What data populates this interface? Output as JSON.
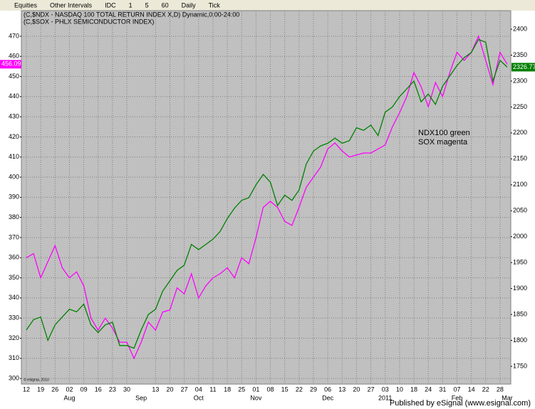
{
  "toolbar": {
    "items": [
      "Equities",
      "Other Intervals",
      "IDC",
      "1",
      "5",
      "60",
      "Daily",
      "Tick"
    ]
  },
  "footer": "Published by eSignal (www.esignal.com)",
  "copyright": "© eSignal, 2010",
  "chart_data": {
    "type": "line",
    "title": "(C,$NDX - NASDAQ 100 TOTAL RETURN INDEX X,D) Dynamic,0:00-24:00",
    "subtitle": "(C,$SOX - PHLX SEMICONDUCTOR INDEX)",
    "annotations": [
      "NDX100 green",
      "SOX magenta"
    ],
    "categories": [
      "12",
      null,
      "19",
      null,
      "26",
      null,
      "02",
      null,
      "09",
      null,
      "16",
      null,
      "23",
      null,
      "30",
      null,
      null,
      null,
      "13",
      null,
      "20",
      null,
      "27",
      null,
      "04",
      null,
      "11",
      null,
      "18",
      null,
      "25",
      null,
      "01",
      null,
      "08",
      null,
      "15",
      null,
      "22",
      null,
      "29",
      null,
      "06",
      null,
      "13",
      null,
      "20",
      null,
      "27",
      null,
      "03",
      null,
      "10",
      null,
      "18",
      null,
      "24",
      null,
      "31",
      null,
      "07",
      null,
      "14",
      null,
      "22",
      null,
      "28",
      null
    ],
    "months": [
      null,
      null,
      null,
      null,
      null,
      null,
      "Aug",
      null,
      null,
      null,
      null,
      null,
      null,
      null,
      null,
      null,
      "Sep",
      null,
      null,
      null,
      null,
      null,
      null,
      null,
      "Oct",
      null,
      null,
      null,
      null,
      null,
      null,
      null,
      "Nov",
      null,
      null,
      null,
      null,
      null,
      null,
      null,
      null,
      null,
      "Dec",
      null,
      null,
      null,
      null,
      null,
      null,
      null,
      "2011",
      null,
      null,
      null,
      null,
      null,
      null,
      null,
      null,
      null,
      "Feb",
      null,
      null,
      null,
      null,
      null,
      null,
      "Mar"
    ],
    "series": [
      {
        "name": "$SOX",
        "color": "#ff00ff",
        "axis": "y",
        "last_label": "456.09",
        "values": [
          360,
          362,
          350,
          358,
          366,
          355,
          350,
          353,
          346,
          330,
          324,
          330,
          325,
          318,
          318,
          310,
          318,
          328,
          324,
          333,
          334,
          345,
          342,
          352,
          340,
          346,
          350,
          352,
          355,
          350,
          360,
          357,
          370,
          385,
          388,
          385,
          378,
          376,
          385,
          395,
          400,
          405,
          414,
          417,
          413,
          410,
          411,
          412,
          412,
          414,
          416,
          425,
          432,
          440,
          452,
          445,
          435,
          447,
          440,
          452,
          462,
          458,
          462,
          470,
          458,
          446,
          462,
          456.09
        ]
      },
      {
        "name": "$NDX",
        "color": "#008000",
        "axis": "y2",
        "last_label": "2326.77",
        "values": [
          1820,
          1840,
          1845,
          1800,
          1830,
          1845,
          1860,
          1855,
          1870,
          1830,
          1815,
          1830,
          1835,
          1790,
          1790,
          1785,
          1820,
          1850,
          1860,
          1895,
          1915,
          1935,
          1945,
          1985,
          1975,
          1985,
          1995,
          2010,
          2035,
          2055,
          2070,
          2075,
          2100,
          2120,
          2105,
          2060,
          2080,
          2070,
          2090,
          2140,
          2165,
          2175,
          2180,
          2190,
          2180,
          2185,
          2210,
          2205,
          2215,
          2195,
          2240,
          2250,
          2270,
          2285,
          2300,
          2260,
          2275,
          2255,
          2290,
          2310,
          2330,
          2345,
          2355,
          2380,
          2375,
          2300,
          2340,
          2326.77
        ]
      }
    ],
    "ylim": [
      297.2,
      482.7
    ],
    "yticks": [
      300,
      310,
      320,
      330,
      340,
      350,
      360,
      370,
      380,
      390,
      400,
      410,
      420,
      430,
      440,
      450,
      460,
      470
    ],
    "y2lim": [
      1715.7,
      2435.7
    ],
    "y2ticks": [
      1750,
      1800,
      1850,
      1900,
      1950,
      2000,
      2050,
      2100,
      2150,
      2200,
      2250,
      2300,
      2350,
      2400
    ],
    "grid": true
  }
}
